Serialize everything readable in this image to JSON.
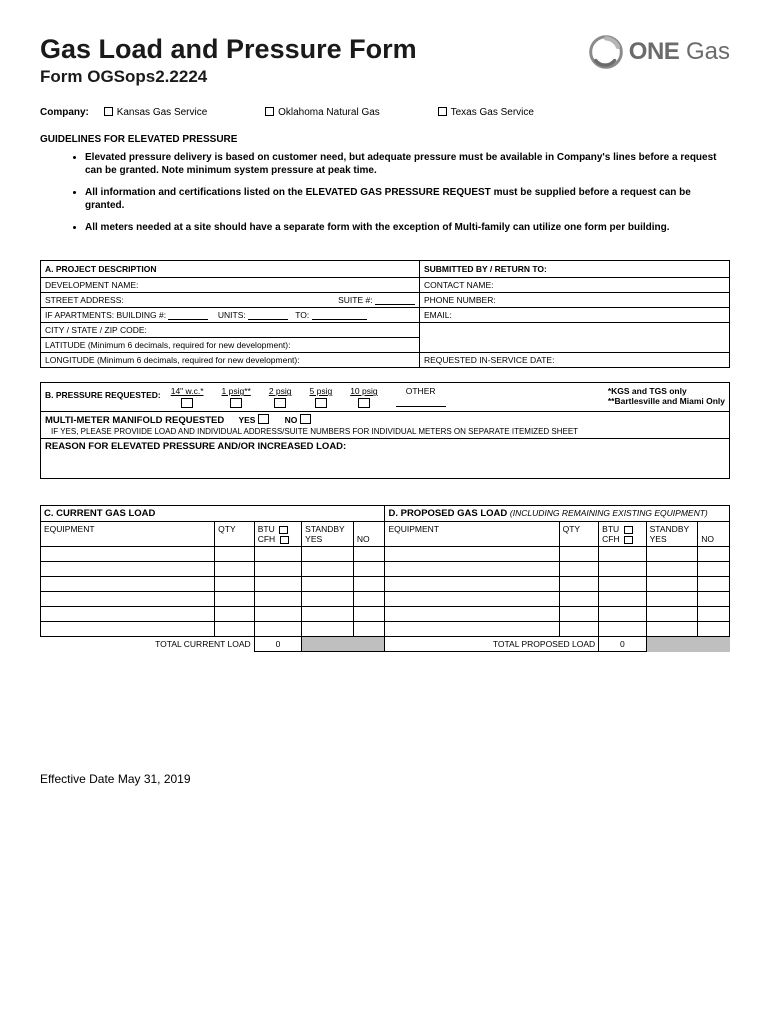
{
  "header": {
    "title": "Gas Load and Pressure Form",
    "form_number": "Form OGSops2.2224",
    "logo_text_bold": "ONE",
    "logo_text_light": "Gas"
  },
  "company": {
    "label": "Company:",
    "options": [
      "Kansas Gas Service",
      "Oklahoma Natural Gas",
      "Texas Gas Service"
    ]
  },
  "guidelines_heading": "GUIDELINES FOR ELEVATED PRESSURE",
  "guidelines": [
    "Elevated pressure delivery is based on customer need, but adequate pressure must be available in Company's lines before a request can be granted.  Note minimum system pressure at peak time.",
    "All information and certifications listed on the ELEVATED GAS PRESSURE REQUEST must be supplied before a request can be granted.",
    "All meters needed at a site should have a separate form with the exception of Multi-family can utilize one form per building."
  ],
  "section_a": {
    "heading_left": "A. PROJECT DESCRIPTION",
    "heading_right": "SUBMITTED BY / RETURN TO:",
    "dev_name": "DEVELOPMENT NAME:",
    "contact_name": "CONTACT NAME:",
    "street": "STREET ADDRESS:",
    "suite": "SUITE #:",
    "phone": "PHONE NUMBER:",
    "apts": "IF APARTMENTS:  BUILDING #:",
    "units": "UNITS:",
    "to": "TO:",
    "email": "EMAIL:",
    "city": "CITY / STATE / ZIP CODE:",
    "lat": "LATITUDE (Minimum 6 decimals, required for new development):",
    "lon": "LONGITUDE (Minimum 6 decimals, required for new development):",
    "req_date": "REQUESTED IN-SERVICE DATE:"
  },
  "section_b": {
    "heading": "B.  PRESSURE REQUESTED:",
    "options": [
      "14\" w.c.*",
      "1 psig**",
      "2 psig",
      "5 psig",
      "10 psig"
    ],
    "other": "OTHER",
    "note1": "*KGS and TGS only",
    "note2": "**Bartlesville and Miami Only",
    "multi_meter": "MULTI-METER MANIFOLD REQUESTED",
    "yes": "YES",
    "no": "NO",
    "if_yes": "IF YES, PLEASE PROVIIDE LOAD AND INDIVIDUAL ADDRESS/SUITE NUMBERS FOR INDIVIDUAL METERS ON SEPARATE ITEMIZED SHEET",
    "reason": "REASON FOR ELEVATED PRESSURE AND/OR INCREASED LOAD:"
  },
  "section_c": {
    "heading": "C.  CURRENT GAS LOAD",
    "heading_d": "D.  PROPOSED GAS LOAD",
    "heading_d_note": "(INCLUDING REMAINING EXISTING EQUIPMENT)",
    "col_equipment": "EQUIPMENT",
    "col_qty": "QTY",
    "col_btu": "BTU",
    "col_cfh": "CFH",
    "col_standby": "STANDBY",
    "col_yes": "YES",
    "col_no": "NO",
    "total_current": "TOTAL CURRENT LOAD",
    "total_proposed": "TOTAL PROPOSED LOAD",
    "zero": "0",
    "num_rows": 6
  },
  "footer": "Effective Date May 31, 2019"
}
